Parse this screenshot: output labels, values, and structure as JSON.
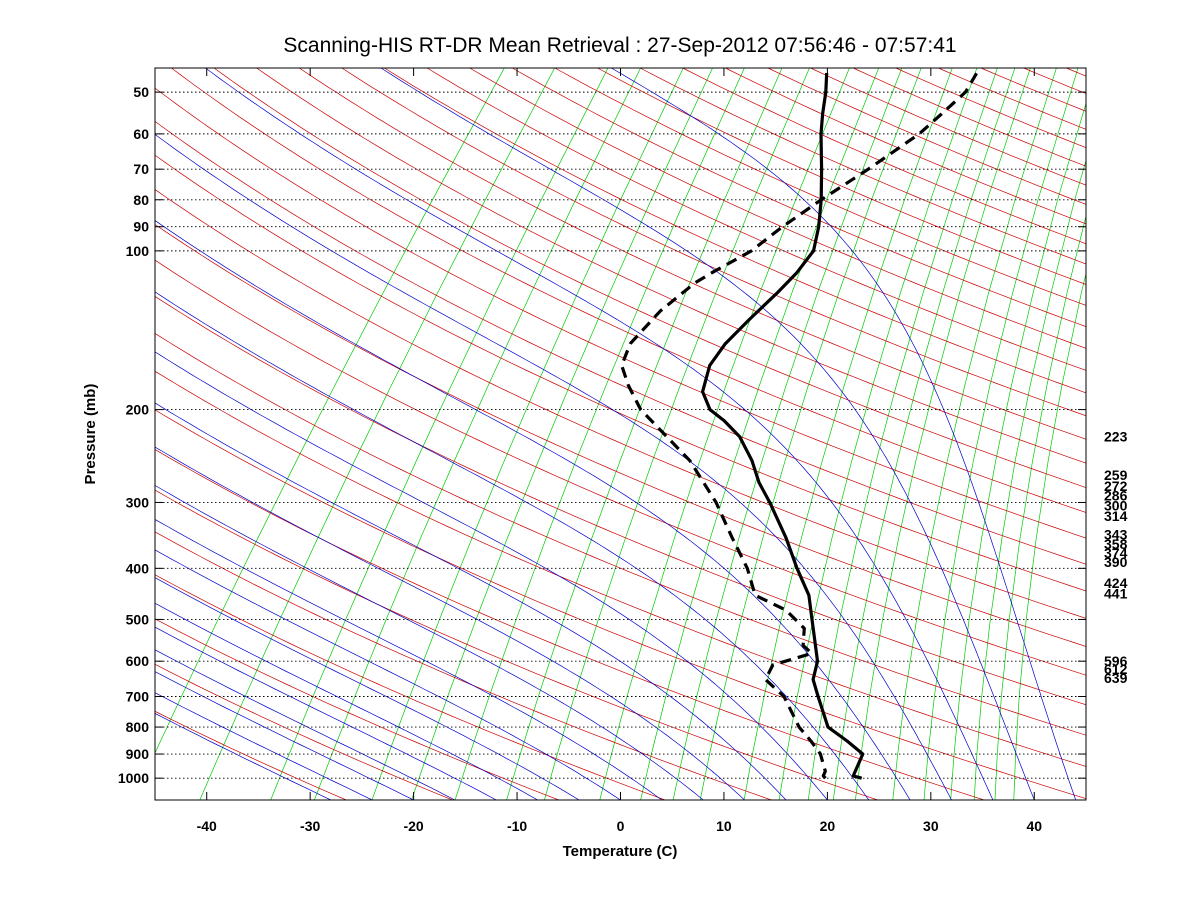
{
  "chart_data": {
    "type": "line",
    "subtype": "skew-T log-P diagram",
    "title": "Scanning-HIS RT-DR Mean Retrieval : 27-Sep-2012 07:56:46 - 07:57:41",
    "xlabel": "Temperature (C)",
    "ylabel": "Pressure (mb)",
    "xlim": [
      -45,
      45
    ],
    "ylim_pressure": [
      1100,
      45
    ],
    "x_ticks": [
      -40,
      -30,
      -20,
      -10,
      0,
      10,
      20,
      30,
      40
    ],
    "y_ticks": [
      50,
      60,
      70,
      80,
      90,
      100,
      200,
      300,
      400,
      500,
      600,
      700,
      800,
      900,
      1000
    ],
    "y_tick_labels": [
      "50",
      "60",
      "70",
      "80",
      "90",
      "100",
      "200",
      "300",
      "400",
      "500",
      "600",
      "700",
      "800",
      "900",
      "1000"
    ],
    "height_labels": [
      "223",
      "259",
      "272",
      "286",
      "300",
      "314",
      "343",
      "358",
      "374",
      "390",
      "424",
      "441",
      "596",
      "612",
      "639"
    ],
    "height_label_pressures": [
      225,
      266,
      279,
      291,
      304,
      318,
      345,
      360,
      374,
      389,
      426,
      446,
      600,
      621,
      646
    ],
    "colors": {
      "grid": "#000000",
      "dry_adiabat": "#cc0000",
      "moist_adiabat": "#0000cc",
      "mixing_ratio": "#00cc00",
      "background": "#ffffff"
    },
    "series": [
      {
        "name": "Temperature",
        "style": "solid",
        "color": "#000000",
        "points": [
          {
            "p": 1000,
            "t": 21.5
          },
          {
            "p": 990,
            "t": 20.5
          },
          {
            "p": 980,
            "t": 20.4
          },
          {
            "p": 900,
            "t": 19.6
          },
          {
            "p": 850,
            "t": 17.0
          },
          {
            "p": 800,
            "t": 14.0
          },
          {
            "p": 700,
            "t": 10.5
          },
          {
            "p": 650,
            "t": 8.6
          },
          {
            "p": 600,
            "t": 7.5
          },
          {
            "p": 550,
            "t": 5.6
          },
          {
            "p": 500,
            "t": 3.5
          },
          {
            "p": 450,
            "t": 1.2
          },
          {
            "p": 400,
            "t": -2.2
          },
          {
            "p": 350,
            "t": -5.8
          },
          {
            "p": 300,
            "t": -10.3
          },
          {
            "p": 275,
            "t": -13.0
          },
          {
            "p": 250,
            "t": -15.5
          },
          {
            "p": 225,
            "t": -18.7
          },
          {
            "p": 210,
            "t": -21.5
          },
          {
            "p": 200,
            "t": -23.8
          },
          {
            "p": 185,
            "t": -26.0
          },
          {
            "p": 165,
            "t": -27.5
          },
          {
            "p": 150,
            "t": -27.8
          },
          {
            "p": 135,
            "t": -27.5
          },
          {
            "p": 120,
            "t": -27.0
          },
          {
            "p": 110,
            "t": -26.8
          },
          {
            "p": 100,
            "t": -27.0
          },
          {
            "p": 90,
            "t": -28.5
          },
          {
            "p": 80,
            "t": -30.5
          },
          {
            "p": 70,
            "t": -33.0
          },
          {
            "p": 60,
            "t": -36.0
          },
          {
            "p": 55,
            "t": -37.5
          },
          {
            "p": 50,
            "t": -39.0
          },
          {
            "p": 46,
            "t": -40.5
          }
        ]
      },
      {
        "name": "Dewpoint",
        "style": "dashed",
        "color": "#000000",
        "points": [
          {
            "p": 1000,
            "t": 18.0
          },
          {
            "p": 990,
            "t": 17.6
          },
          {
            "p": 970,
            "t": 17.4
          },
          {
            "p": 900,
            "t": 15.5
          },
          {
            "p": 850,
            "t": 13.5
          },
          {
            "p": 800,
            "t": 11.2
          },
          {
            "p": 700,
            "t": 7.2
          },
          {
            "p": 650,
            "t": 4.0
          },
          {
            "p": 610,
            "t": 3.5
          },
          {
            "p": 580,
            "t": 6.3
          },
          {
            "p": 560,
            "t": 4.8
          },
          {
            "p": 520,
            "t": 3.5
          },
          {
            "p": 480,
            "t": 0.2
          },
          {
            "p": 450,
            "t": -4.0
          },
          {
            "p": 400,
            "t": -7.0
          },
          {
            "p": 350,
            "t": -11.0
          },
          {
            "p": 300,
            "t": -15.5
          },
          {
            "p": 250,
            "t": -21.5
          },
          {
            "p": 200,
            "t": -30.5
          },
          {
            "p": 180,
            "t": -33.7
          },
          {
            "p": 165,
            "t": -36.0
          },
          {
            "p": 150,
            "t": -37.0
          },
          {
            "p": 130,
            "t": -36.8
          },
          {
            "p": 115,
            "t": -35.8
          },
          {
            "p": 110,
            "t": -35.0
          },
          {
            "p": 100,
            "t": -33.0
          },
          {
            "p": 90,
            "t": -32.0
          },
          {
            "p": 80,
            "t": -30.5
          },
          {
            "p": 70,
            "t": -28.5
          },
          {
            "p": 60,
            "t": -26.5
          },
          {
            "p": 55,
            "t": -26.0
          },
          {
            "p": 50,
            "t": -25.5
          },
          {
            "p": 46,
            "t": -26.0
          }
        ]
      }
    ]
  }
}
